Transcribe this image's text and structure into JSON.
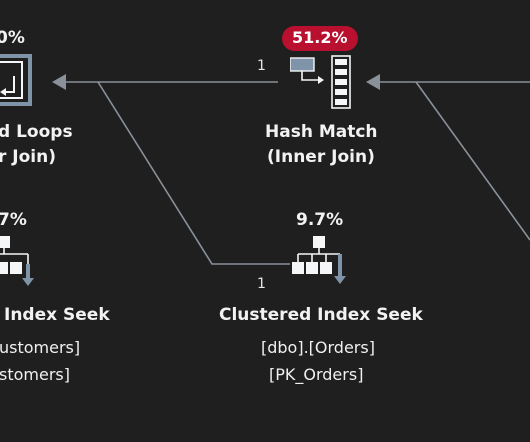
{
  "nodes": {
    "nested_loops": {
      "cost": "0%",
      "title_line1": "d Loops",
      "title_line2": "r Join)",
      "icon": "nested-loops-icon"
    },
    "hash_match": {
      "cost": "51.2%",
      "title_line1": "Hash Match",
      "title_line2": "(Inner Join)",
      "icon": "hash-match-icon",
      "badge_color": "#b8102e"
    },
    "left_seek": {
      "cost": "7%",
      "title": "Index Seek",
      "line1": "ustomers]",
      "line2": "stomers]",
      "icon": "index-seek-icon"
    },
    "clustered_seek": {
      "cost": "9.7%",
      "title": "Clustered Index Seek",
      "line1": "[dbo].[Orders]",
      "line2": "[PK_Orders]",
      "icon": "clustered-index-seek-icon"
    }
  },
  "edges": {
    "hash_to_nested_rows": "1",
    "seek_to_nested_rows": "1"
  },
  "colors": {
    "background": "#1f1f1f",
    "connector": "#8a9199",
    "icon_fill": "#f4f6f8",
    "icon_accent": "#7f94a8"
  }
}
